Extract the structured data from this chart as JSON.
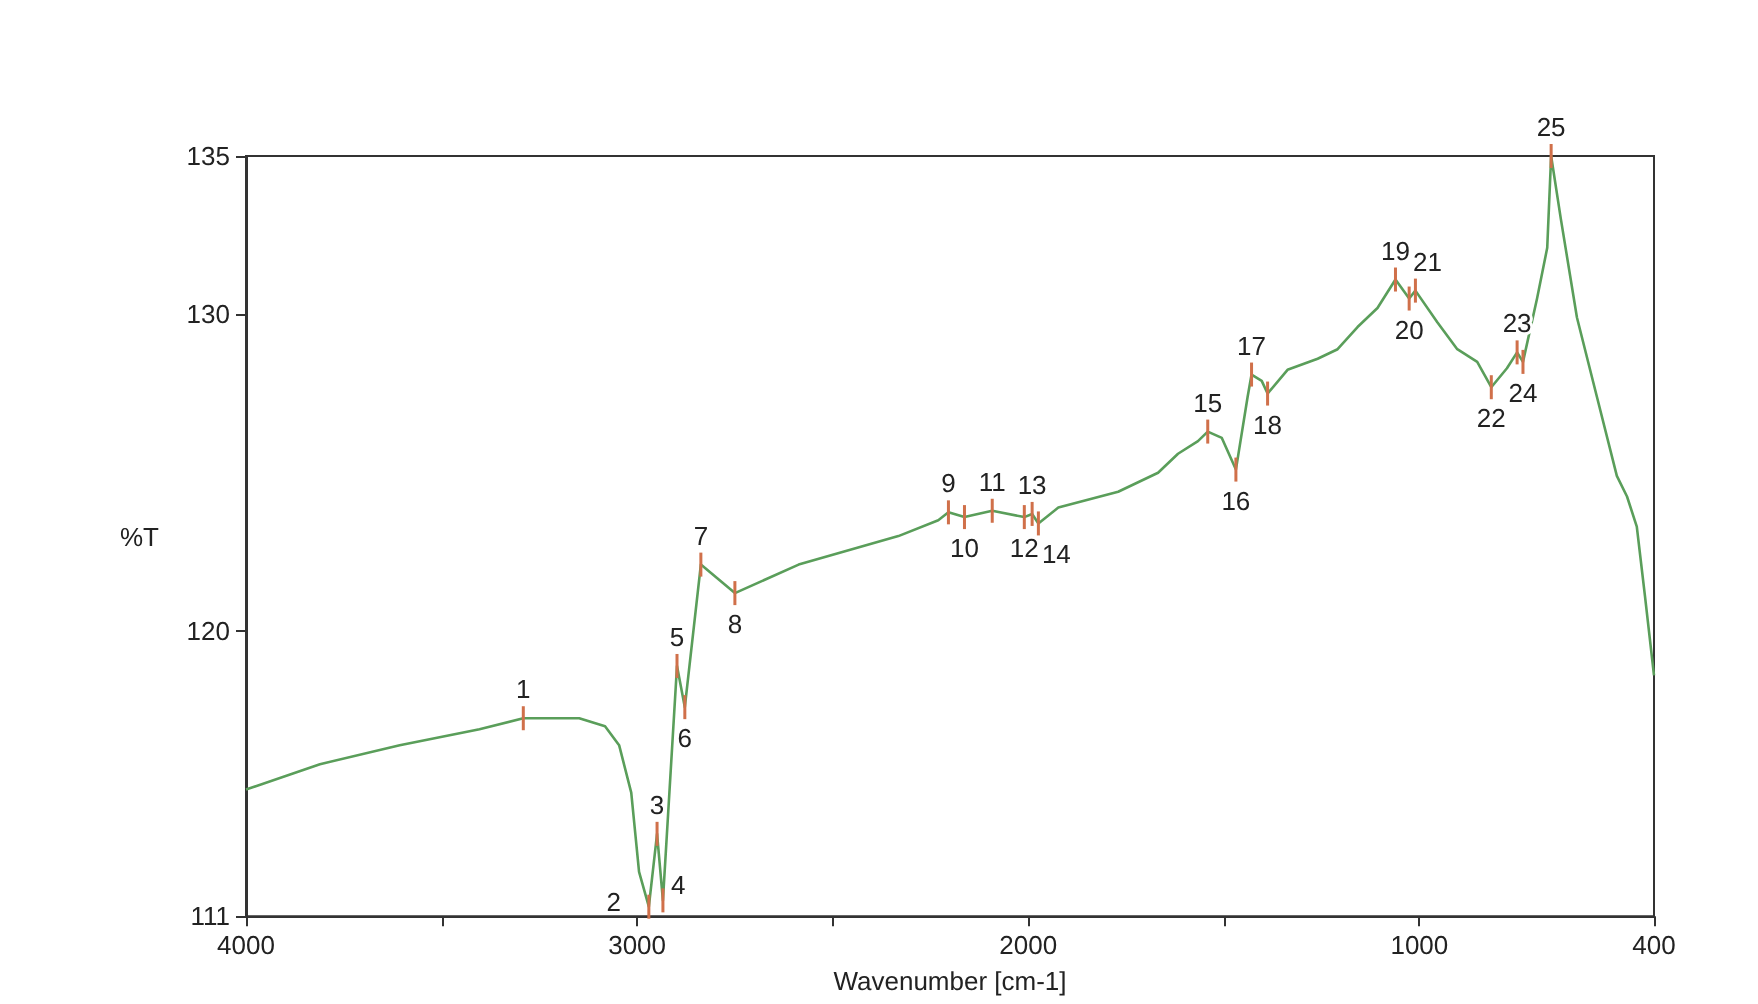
{
  "chart_data": {
    "type": "line",
    "xlabel": "Wavenumber [cm-1]",
    "ylabel": "%T",
    "xlim": [
      4000,
      400
    ],
    "ylim": [
      111,
      135
    ],
    "xticks": [
      4000,
      {
        "value": 3500,
        "label": null
      },
      3000,
      {
        "value": 2500,
        "label": null
      },
      2000,
      {
        "value": 1500,
        "label": null
      },
      1000,
      400
    ],
    "yticks": [
      111,
      120,
      130,
      135
    ],
    "grid": false,
    "marker": "none",
    "line_style": "solid",
    "series": [
      {
        "color": "#5a9e5a",
        "x": [
          4000,
          3811,
          3607,
          3403,
          3291,
          3148,
          3082,
          3046,
          3015,
          2995,
          2970,
          2949,
          2934,
          2898,
          2878,
          2837,
          2750,
          2587,
          2332,
          2230,
          2204,
          2163,
          2092,
          2010,
          1990,
          1974,
          1923,
          1770,
          1668,
          1617,
          1566,
          1541,
          1505,
          1469,
          1439,
          1429,
          1403,
          1388,
          1337,
          1260,
          1209,
          1158,
          1107,
          1061,
          1026,
          1010,
          954,
          903,
          852,
          816,
          776,
          750,
          735,
          699,
          673,
          663,
          638,
          597,
          546,
          495,
          469,
          444,
          423,
          400
        ],
        "values": [
          115.0,
          115.8,
          116.4,
          116.9,
          117.25,
          117.25,
          117.0,
          116.4,
          114.9,
          112.4,
          111.3,
          113.6,
          111.5,
          118.9,
          117.6,
          122.1,
          121.2,
          122.1,
          123.0,
          123.5,
          123.75,
          123.6,
          123.8,
          123.6,
          123.7,
          123.4,
          123.9,
          124.4,
          125.0,
          125.6,
          126.0,
          126.3,
          126.1,
          125.1,
          127.4,
          128.1,
          127.9,
          127.5,
          128.25,
          128.6,
          128.9,
          129.6,
          130.2,
          131.1,
          130.5,
          130.75,
          129.75,
          128.9,
          128.5,
          127.7,
          128.3,
          128.8,
          128.5,
          130.5,
          132.1,
          135.0,
          133.0,
          129.9,
          127.4,
          124.9,
          124.25,
          123.3,
          121.1,
          118.6
        ]
      }
    ],
    "annotations": [
      {
        "text": "1",
        "x": 3291,
        "y": 117.25
      },
      {
        "text": "2",
        "x": 2970,
        "y": 111.3
      },
      {
        "text": "3",
        "x": 2949,
        "y": 113.6
      },
      {
        "text": "4",
        "x": 2934,
        "y": 111.5
      },
      {
        "text": "5",
        "x": 2898,
        "y": 118.9
      },
      {
        "text": "6",
        "x": 2878,
        "y": 117.6
      },
      {
        "text": "7",
        "x": 2837,
        "y": 122.1
      },
      {
        "text": "8",
        "x": 2750,
        "y": 121.2
      },
      {
        "text": "9",
        "x": 2204,
        "y": 123.75
      },
      {
        "text": "10",
        "x": 2163,
        "y": 123.6
      },
      {
        "text": "11",
        "x": 2092,
        "y": 123.8
      },
      {
        "text": "12",
        "x": 2010,
        "y": 123.6
      },
      {
        "text": "13",
        "x": 1990,
        "y": 123.7
      },
      {
        "text": "14",
        "x": 1974,
        "y": 123.4
      },
      {
        "text": "15",
        "x": 1541,
        "y": 126.3
      },
      {
        "text": "16",
        "x": 1469,
        "y": 125.1
      },
      {
        "text": "17",
        "x": 1429,
        "y": 128.1
      },
      {
        "text": "18",
        "x": 1388,
        "y": 127.5
      },
      {
        "text": "19",
        "x": 1061,
        "y": 131.1
      },
      {
        "text": "20",
        "x": 1026,
        "y": 130.5
      },
      {
        "text": "21",
        "x": 1010,
        "y": 130.75
      },
      {
        "text": "22",
        "x": 816,
        "y": 127.7
      },
      {
        "text": "23",
        "x": 750,
        "y": 128.8
      },
      {
        "text": "24",
        "x": 735,
        "y": 128.5
      },
      {
        "text": "25",
        "x": 663,
        "y": 135.0
      }
    ]
  }
}
